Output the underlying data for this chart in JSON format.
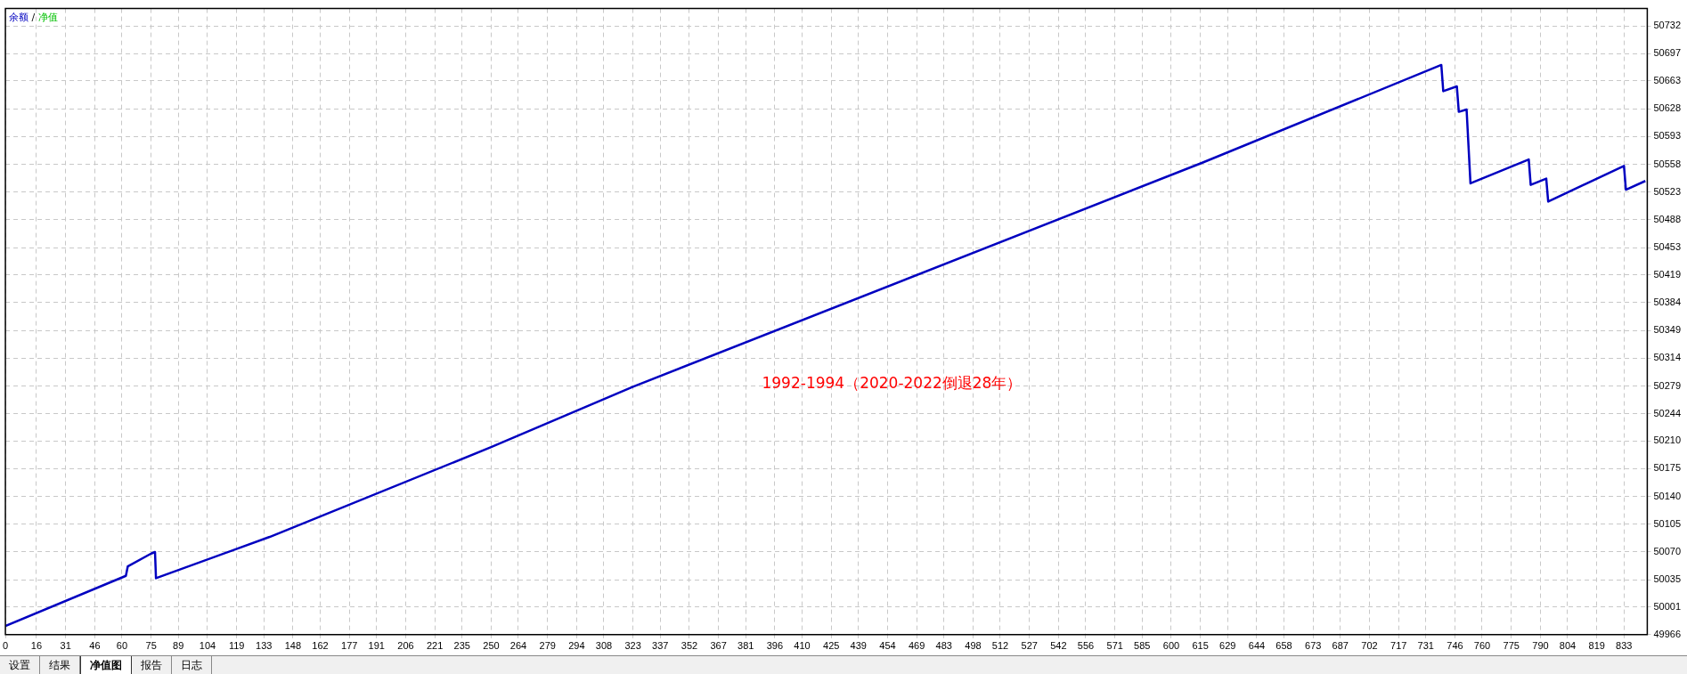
{
  "chart_data": {
    "type": "line",
    "x": [
      0,
      62,
      63,
      75,
      77,
      77.5,
      136,
      250,
      323,
      616,
      739,
      740,
      747,
      748,
      752,
      754,
      784,
      785,
      793,
      794,
      833,
      834,
      844
    ],
    "series": [
      {
        "name": "余额",
        "color": "#0000c0",
        "values": [
          49977,
          50040,
          50052,
          50068,
          50070,
          50037,
          50089,
          50202,
          50278,
          50560,
          50683,
          50650,
          50656,
          50624,
          50627,
          50534,
          50564,
          50532,
          50540,
          50511,
          50556,
          50526,
          50537
        ]
      },
      {
        "name": "净值",
        "color": "#00c000",
        "values": [
          null,
          null,
          null,
          null,
          null,
          null,
          null,
          null,
          null,
          null,
          null,
          null,
          null,
          null,
          null,
          null,
          null,
          null,
          null,
          null,
          null,
          null,
          null
        ]
      }
    ],
    "xlim": [
      0,
      845
    ],
    "xticks": [
      0,
      16,
      31,
      46,
      60,
      75,
      89,
      104,
      119,
      133,
      148,
      162,
      177,
      191,
      206,
      221,
      235,
      250,
      264,
      279,
      294,
      308,
      323,
      337,
      352,
      367,
      381,
      396,
      410,
      425,
      439,
      454,
      469,
      483,
      498,
      512,
      527,
      542,
      556,
      571,
      585,
      600,
      615,
      629,
      644,
      658,
      673,
      687,
      702,
      717,
      731,
      746,
      760,
      775,
      790,
      804,
      819,
      833
    ],
    "ylim": [
      49966,
      50754
    ],
    "yticks": [
      49966,
      50001,
      50035,
      50070,
      50105,
      50140,
      50175,
      50210,
      50244,
      50279,
      50314,
      50349,
      50384,
      50419,
      50453,
      50488,
      50523,
      50558,
      50593,
      50628,
      50663,
      50697,
      50732
    ],
    "legend_title": "/",
    "grid": true,
    "legend": "top left",
    "marker": "none",
    "line_style": "solid",
    "annotations": [
      "1992-1994（2020-2022倒退28年）",
      "设置",
      "结果",
      "净值图",
      "报告",
      "日志"
    ]
  }
}
